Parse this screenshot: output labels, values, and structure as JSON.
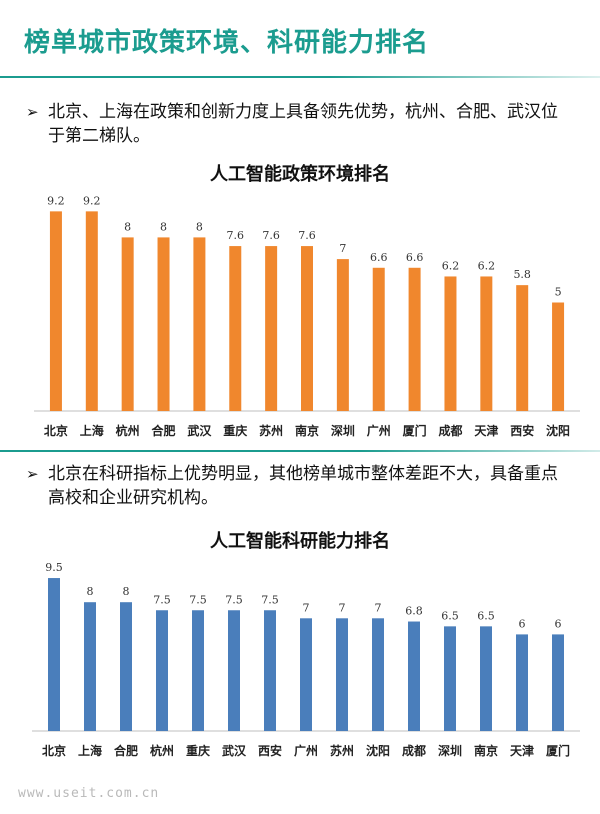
{
  "page": {
    "title": "榜单城市政策环境、科研能力排名",
    "bullet_marker": "➢",
    "bullet1": "北京、上海在政策和创新力度上具备领先优势，杭州、合肥、武汉位于第二梯队。",
    "bullet2": "北京在科研指标上优势明显，其他榜单城市整体差距不大，具备重点高校和企业研究机构。",
    "watermark": "www.useit.com.cn",
    "accent_color": "#1b9c8f"
  },
  "chart_data": [
    {
      "type": "bar",
      "title": "人工智能政策环境排名",
      "categories": [
        "北京",
        "上海",
        "杭州",
        "合肥",
        "武汉",
        "重庆",
        "苏州",
        "南京",
        "深圳",
        "广州",
        "厦门",
        "成都",
        "天津",
        "西安",
        "沈阳"
      ],
      "values": [
        9.2,
        9.2,
        8,
        8,
        8,
        7.6,
        7.6,
        7.6,
        7,
        6.6,
        6.6,
        6.2,
        6.2,
        5.8,
        5
      ],
      "value_labels": [
        "9.2",
        "9.2",
        "8",
        "8",
        "8",
        "7.6",
        "7.6",
        "7.6",
        "7",
        "6.6",
        "6.6",
        "6.2",
        "6.2",
        "5.8",
        "5"
      ],
      "color": "#f0872d",
      "ylim": [
        0,
        10
      ],
      "grid": false
    },
    {
      "type": "bar",
      "title": "人工智能科研能力排名",
      "categories": [
        "北京",
        "上海",
        "合肥",
        "杭州",
        "重庆",
        "武汉",
        "西安",
        "广州",
        "苏州",
        "沈阳",
        "成都",
        "深圳",
        "南京",
        "天津",
        "厦门"
      ],
      "values": [
        9.5,
        8,
        8,
        7.5,
        7.5,
        7.5,
        7.5,
        7,
        7,
        7,
        6.8,
        6.5,
        6.5,
        6,
        6
      ],
      "value_labels": [
        "9.5",
        "8",
        "8",
        "7.5",
        "7.5",
        "7.5",
        "7.5",
        "7",
        "7",
        "7",
        "6.8",
        "6.5",
        "6.5",
        "6",
        "6"
      ],
      "color": "#4a7ebb",
      "ylim": [
        0,
        10
      ],
      "grid": false
    }
  ]
}
